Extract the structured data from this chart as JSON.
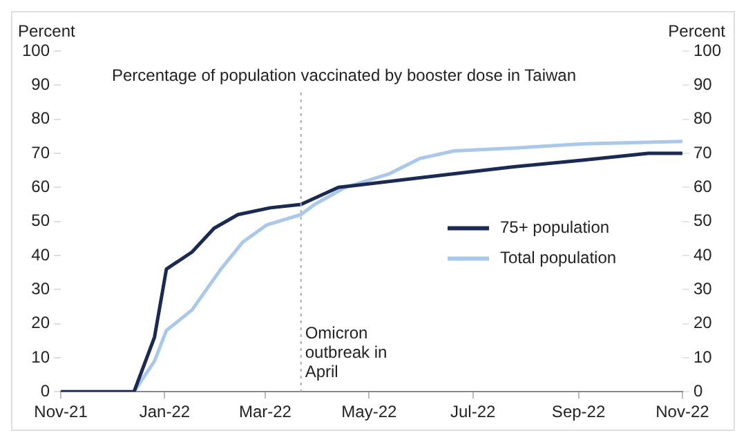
{
  "chart_data": {
    "type": "line",
    "title": "Percentage of population vaccinated by booster dose in Taiwan",
    "ylabel": "Percent",
    "y2label": "Percent",
    "xlim": [
      "2021-11-01",
      "2022-11-01"
    ],
    "xticks": [
      {
        "value": "2021-11-01",
        "label": "Nov-21"
      },
      {
        "value": "2022-01-01",
        "label": "Jan-22"
      },
      {
        "value": "2022-03-01",
        "label": "Mar-22"
      },
      {
        "value": "2022-05-01",
        "label": "May-22"
      },
      {
        "value": "2022-07-01",
        "label": "Jul-22"
      },
      {
        "value": "2022-09-01",
        "label": "Sep-22"
      },
      {
        "value": "2022-11-01",
        "label": "Nov-22"
      }
    ],
    "ylim": [
      0,
      100
    ],
    "yticks": [
      0,
      10,
      20,
      30,
      40,
      50,
      60,
      70,
      80,
      90,
      100
    ],
    "y2lim": [
      0,
      100
    ],
    "y2ticks": [
      0,
      10,
      20,
      30,
      40,
      50,
      60,
      70,
      80,
      90,
      100
    ],
    "series": [
      {
        "name": "75+ population",
        "color": "#1b2a52",
        "x": [
          "2021-11-01",
          "2021-12-14",
          "2021-12-26",
          "2022-01-02",
          "2022-01-17",
          "2022-01-30",
          "2022-02-13",
          "2022-03-04",
          "2022-03-22",
          "2022-04-13",
          "2022-06-03",
          "2022-07-24",
          "2022-09-04",
          "2022-10-12",
          "2022-11-01"
        ],
        "values": [
          0,
          0,
          16,
          36,
          41,
          48,
          52,
          54,
          55,
          60,
          63,
          66,
          68,
          70,
          70
        ]
      },
      {
        "name": "Total population",
        "color": "#a9c8ea",
        "x": [
          "2021-11-01",
          "2021-12-14",
          "2021-12-26",
          "2022-01-02",
          "2022-01-17",
          "2022-02-03",
          "2022-02-16",
          "2022-03-02",
          "2022-03-22",
          "2022-03-30",
          "2022-04-17",
          "2022-05-13",
          "2022-05-31",
          "2022-06-20",
          "2022-07-24",
          "2022-09-04",
          "2022-11-01"
        ],
        "values": [
          0,
          0,
          9,
          18,
          24,
          36,
          44,
          49,
          52,
          55,
          60,
          64,
          68.5,
          70.7,
          71.5,
          72.8,
          73.5
        ]
      }
    ],
    "ref_lines": [
      {
        "axis": "x",
        "value": "2022-03-22",
        "label": "Omicron outbreak in April",
        "line_style": "dotted",
        "color": "#aaaaaa"
      }
    ],
    "legend": "right",
    "grid": false,
    "marker": "none",
    "line_style": "solid"
  }
}
